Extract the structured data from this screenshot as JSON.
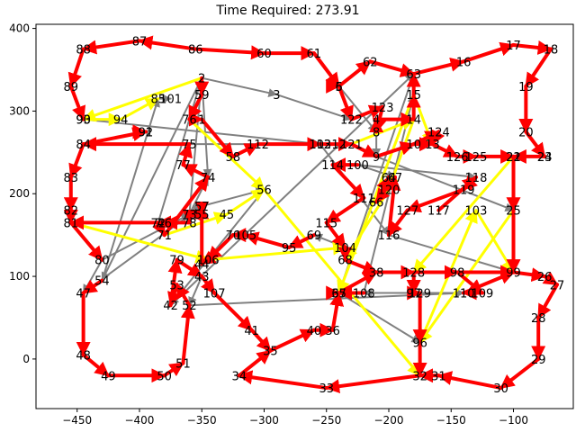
{
  "chart_data": {
    "type": "line",
    "title": "Time Required: 273.91",
    "xlabel": "",
    "ylabel": "",
    "xlim": [
      -483,
      -52
    ],
    "ylim": [
      -60,
      405
    ],
    "xticks": [
      -450,
      -400,
      -350,
      -300,
      -250,
      -200,
      -150,
      -100
    ],
    "yticks": [
      0,
      100,
      200,
      300,
      400
    ],
    "grid": false,
    "colors": {
      "route": "#ff0000",
      "highlight": "#ffff00",
      "connector": "#808080"
    },
    "nodes": [
      {
        "id": "1",
        "x": -350,
        "y": 290
      },
      {
        "id": "2",
        "x": -350,
        "y": 340
      },
      {
        "id": "3",
        "x": -290,
        "y": 320
      },
      {
        "id": "4",
        "x": -210,
        "y": 290
      },
      {
        "id": "5",
        "x": -240,
        "y": 330
      },
      {
        "id": "6",
        "x": -240,
        "y": 330
      },
      {
        "id": "7",
        "x": -385,
        "y": 165
      },
      {
        "id": "8",
        "x": -210,
        "y": 275
      },
      {
        "id": "9",
        "x": -210,
        "y": 245
      },
      {
        "id": "10",
        "x": -180,
        "y": 260
      },
      {
        "id": "12",
        "x": -240,
        "y": 260
      },
      {
        "id": "13",
        "x": -165,
        "y": 260
      },
      {
        "id": "14",
        "x": -180,
        "y": 290
      },
      {
        "id": "15",
        "x": -180,
        "y": 320
      },
      {
        "id": "16",
        "x": -140,
        "y": 360
      },
      {
        "id": "17",
        "x": -100,
        "y": 380
      },
      {
        "id": "18",
        "x": -70,
        "y": 375
      },
      {
        "id": "19",
        "x": -90,
        "y": 330
      },
      {
        "id": "20",
        "x": -90,
        "y": 275
      },
      {
        "id": "21",
        "x": -100,
        "y": 245
      },
      {
        "id": "22",
        "x": -100,
        "y": 245
      },
      {
        "id": "23",
        "x": -75,
        "y": 245
      },
      {
        "id": "24",
        "x": -75,
        "y": 245
      },
      {
        "id": "25",
        "x": -100,
        "y": 180
      },
      {
        "id": "26",
        "x": -75,
        "y": 100
      },
      {
        "id": "27",
        "x": -65,
        "y": 90
      },
      {
        "id": "28",
        "x": -80,
        "y": 50
      },
      {
        "id": "29",
        "x": -80,
        "y": 0
      },
      {
        "id": "30",
        "x": -110,
        "y": -35
      },
      {
        "id": "31",
        "x": -160,
        "y": -20
      },
      {
        "id": "32",
        "x": -175,
        "y": -20
      },
      {
        "id": "33",
        "x": -250,
        "y": -35
      },
      {
        "id": "34",
        "x": -320,
        "y": -20
      },
      {
        "id": "35",
        "x": -295,
        "y": 10
      },
      {
        "id": "36",
        "x": -245,
        "y": 35
      },
      {
        "id": "37",
        "x": -240,
        "y": 80
      },
      {
        "id": "38",
        "x": -210,
        "y": 105
      },
      {
        "id": "40",
        "x": -260,
        "y": 35
      },
      {
        "id": "41",
        "x": -310,
        "y": 35
      },
      {
        "id": "42",
        "x": -375,
        "y": 65
      },
      {
        "id": "43",
        "x": -350,
        "y": 100
      },
      {
        "id": "44",
        "x": -350,
        "y": 115
      },
      {
        "id": "45",
        "x": -330,
        "y": 175
      },
      {
        "id": "46",
        "x": -380,
        "y": 165
      },
      {
        "id": "47",
        "x": -445,
        "y": 80
      },
      {
        "id": "48",
        "x": -445,
        "y": 5
      },
      {
        "id": "49",
        "x": -425,
        "y": -20
      },
      {
        "id": "50",
        "x": -380,
        "y": -20
      },
      {
        "id": "51",
        "x": -365,
        "y": -5
      },
      {
        "id": "52",
        "x": -360,
        "y": 65
      },
      {
        "id": "53",
        "x": -370,
        "y": 90
      },
      {
        "id": "54",
        "x": -430,
        "y": 95
      },
      {
        "id": "55",
        "x": -350,
        "y": 175
      },
      {
        "id": "56",
        "x": -300,
        "y": 205
      },
      {
        "id": "57",
        "x": -350,
        "y": 185
      },
      {
        "id": "58",
        "x": -325,
        "y": 245
      },
      {
        "id": "59",
        "x": -350,
        "y": 320
      },
      {
        "id": "60",
        "x": -300,
        "y": 370
      },
      {
        "id": "61",
        "x": -260,
        "y": 370
      },
      {
        "id": "62",
        "x": -215,
        "y": 360
      },
      {
        "id": "63",
        "x": -180,
        "y": 345
      },
      {
        "id": "64",
        "x": -200,
        "y": 220
      },
      {
        "id": "65",
        "x": -240,
        "y": 80
      },
      {
        "id": "66",
        "x": -210,
        "y": 190
      },
      {
        "id": "67",
        "x": -195,
        "y": 220
      },
      {
        "id": "68",
        "x": -235,
        "y": 120
      },
      {
        "id": "69",
        "x": -260,
        "y": 150
      },
      {
        "id": "70",
        "x": -325,
        "y": 150
      },
      {
        "id": "71",
        "x": -380,
        "y": 150
      },
      {
        "id": "72",
        "x": -385,
        "y": 165
      },
      {
        "id": "73",
        "x": -360,
        "y": 175
      },
      {
        "id": "74",
        "x": -345,
        "y": 220
      },
      {
        "id": "75",
        "x": -360,
        "y": 260
      },
      {
        "id": "76",
        "x": -360,
        "y": 290
      },
      {
        "id": "77",
        "x": -365,
        "y": 235
      },
      {
        "id": "78",
        "x": -360,
        "y": 165
      },
      {
        "id": "79",
        "x": -370,
        "y": 120
      },
      {
        "id": "80",
        "x": -430,
        "y": 120
      },
      {
        "id": "81",
        "x": -455,
        "y": 165
      },
      {
        "id": "82",
        "x": -455,
        "y": 180
      },
      {
        "id": "83",
        "x": -455,
        "y": 220
      },
      {
        "id": "84",
        "x": -445,
        "y": 260
      },
      {
        "id": "85",
        "x": -385,
        "y": 315
      },
      {
        "id": "86",
        "x": -355,
        "y": 375
      },
      {
        "id": "87",
        "x": -400,
        "y": 385
      },
      {
        "id": "88",
        "x": -445,
        "y": 375
      },
      {
        "id": "89",
        "x": -455,
        "y": 330
      },
      {
        "id": "90",
        "x": -445,
        "y": 290
      },
      {
        "id": "91",
        "x": -395,
        "y": 275
      },
      {
        "id": "92",
        "x": -395,
        "y": 275
      },
      {
        "id": "93",
        "x": -445,
        "y": 290
      },
      {
        "id": "94",
        "x": -415,
        "y": 290
      },
      {
        "id": "95",
        "x": -280,
        "y": 135
      },
      {
        "id": "96",
        "x": -175,
        "y": 20
      },
      {
        "id": "97",
        "x": -180,
        "y": 80
      },
      {
        "id": "98",
        "x": -145,
        "y": 105
      },
      {
        "id": "99",
        "x": -100,
        "y": 105
      },
      {
        "id": "100",
        "x": -225,
        "y": 235
      },
      {
        "id": "101",
        "x": -375,
        "y": 315
      },
      {
        "id": "102",
        "x": -255,
        "y": 260
      },
      {
        "id": "103",
        "x": -130,
        "y": 180
      },
      {
        "id": "104",
        "x": -235,
        "y": 135
      },
      {
        "id": "105",
        "x": -315,
        "y": 150
      },
      {
        "id": "106",
        "x": -345,
        "y": 120
      },
      {
        "id": "107",
        "x": -340,
        "y": 80
      },
      {
        "id": "108",
        "x": -220,
        "y": 80
      },
      {
        "id": "109",
        "x": -125,
        "y": 80
      },
      {
        "id": "110",
        "x": -140,
        "y": 80
      },
      {
        "id": "111",
        "x": -220,
        "y": 195
      },
      {
        "id": "112",
        "x": -305,
        "y": 260
      },
      {
        "id": "113",
        "x": -255,
        "y": 260
      },
      {
        "id": "114",
        "x": -245,
        "y": 235
      },
      {
        "id": "115",
        "x": -250,
        "y": 165
      },
      {
        "id": "116",
        "x": -200,
        "y": 150
      },
      {
        "id": "117",
        "x": -160,
        "y": 180
      },
      {
        "id": "118",
        "x": -130,
        "y": 220
      },
      {
        "id": "119",
        "x": -140,
        "y": 205
      },
      {
        "id": "120",
        "x": -200,
        "y": 205
      },
      {
        "id": "121",
        "x": -230,
        "y": 260
      },
      {
        "id": "122",
        "x": -230,
        "y": 290
      },
      {
        "id": "123",
        "x": -205,
        "y": 305
      },
      {
        "id": "124",
        "x": -160,
        "y": 275
      },
      {
        "id": "125",
        "x": -130,
        "y": 245
      },
      {
        "id": "126",
        "x": -145,
        "y": 245
      },
      {
        "id": "127",
        "x": -185,
        "y": 180
      },
      {
        "id": "128",
        "x": -180,
        "y": 105
      },
      {
        "id": "129",
        "x": -175,
        "y": 80
      }
    ],
    "red_edges": [
      [
        "86",
        "87"
      ],
      [
        "87",
        "88"
      ],
      [
        "88",
        "89"
      ],
      [
        "89",
        "90"
      ],
      [
        "84",
        "83"
      ],
      [
        "83",
        "82"
      ],
      [
        "82",
        "81"
      ],
      [
        "81",
        "80"
      ],
      [
        "54",
        "47"
      ],
      [
        "47",
        "48"
      ],
      [
        "48",
        "49"
      ],
      [
        "49",
        "50"
      ],
      [
        "50",
        "51"
      ],
      [
        "51",
        "52"
      ],
      [
        "52",
        "53"
      ],
      [
        "53",
        "42"
      ],
      [
        "42",
        "79"
      ],
      [
        "79",
        "43"
      ],
      [
        "43",
        "107"
      ],
      [
        "107",
        "41"
      ],
      [
        "41",
        "35"
      ],
      [
        "35",
        "40"
      ],
      [
        "40",
        "36"
      ],
      [
        "36",
        "37"
      ],
      [
        "37",
        "38"
      ],
      [
        "38",
        "128"
      ],
      [
        "128",
        "98"
      ],
      [
        "98",
        "99"
      ],
      [
        "99",
        "26"
      ],
      [
        "26",
        "27"
      ],
      [
        "27",
        "28"
      ],
      [
        "28",
        "29"
      ],
      [
        "29",
        "30"
      ],
      [
        "30",
        "31"
      ],
      [
        "31",
        "32"
      ],
      [
        "32",
        "33"
      ],
      [
        "33",
        "34"
      ],
      [
        "34",
        "35"
      ],
      [
        "60",
        "61"
      ],
      [
        "61",
        "5"
      ],
      [
        "5",
        "62"
      ],
      [
        "62",
        "63"
      ],
      [
        "63",
        "16"
      ],
      [
        "16",
        "17"
      ],
      [
        "17",
        "18"
      ],
      [
        "18",
        "19"
      ],
      [
        "19",
        "20"
      ],
      [
        "20",
        "23"
      ],
      [
        "23",
        "21"
      ],
      [
        "21",
        "25"
      ],
      [
        "25",
        "99"
      ],
      [
        "86",
        "60"
      ],
      [
        "2",
        "59"
      ],
      [
        "59",
        "76"
      ],
      [
        "76",
        "1"
      ],
      [
        "1",
        "58"
      ],
      [
        "58",
        "112"
      ],
      [
        "112",
        "102"
      ],
      [
        "102",
        "121"
      ],
      [
        "121",
        "9"
      ],
      [
        "9",
        "10"
      ],
      [
        "10",
        "13"
      ],
      [
        "13",
        "126"
      ],
      [
        "126",
        "125"
      ],
      [
        "125",
        "22"
      ],
      [
        "117",
        "118"
      ],
      [
        "118",
        "119"
      ],
      [
        "119",
        "127"
      ],
      [
        "127",
        "116"
      ],
      [
        "116",
        "67"
      ],
      [
        "67",
        "66"
      ],
      [
        "66",
        "64"
      ],
      [
        "100",
        "114"
      ],
      [
        "114",
        "111"
      ],
      [
        "111",
        "115"
      ],
      [
        "115",
        "104"
      ],
      [
        "104",
        "68"
      ],
      [
        "68",
        "38"
      ],
      [
        "69",
        "95"
      ],
      [
        "95",
        "105"
      ],
      [
        "105",
        "70"
      ],
      [
        "70",
        "106"
      ],
      [
        "106",
        "44"
      ],
      [
        "44",
        "57"
      ],
      [
        "57",
        "55"
      ],
      [
        "55",
        "73"
      ],
      [
        "73",
        "78"
      ],
      [
        "78",
        "46"
      ],
      [
        "46",
        "72"
      ],
      [
        "72",
        "81"
      ],
      [
        "7",
        "71"
      ],
      [
        "71",
        "74"
      ],
      [
        "74",
        "77"
      ],
      [
        "77",
        "75"
      ],
      [
        "75",
        "84"
      ],
      [
        "84",
        "91"
      ],
      [
        "91",
        "92"
      ],
      [
        "5",
        "6"
      ],
      [
        "6",
        "122"
      ],
      [
        "122",
        "123"
      ],
      [
        "123",
        "8"
      ],
      [
        "8",
        "4"
      ],
      [
        "4",
        "14"
      ],
      [
        "14",
        "15"
      ],
      [
        "15",
        "63"
      ],
      [
        "10",
        "124"
      ],
      [
        "124",
        "13"
      ],
      [
        "128",
        "97"
      ],
      [
        "97",
        "129"
      ],
      [
        "129",
        "96"
      ],
      [
        "96",
        "32"
      ],
      [
        "98",
        "109"
      ],
      [
        "109",
        "110"
      ],
      [
        "110",
        "99"
      ],
      [
        "108",
        "65"
      ],
      [
        "65",
        "37"
      ]
    ],
    "yellow_edges": [
      [
        "2",
        "93"
      ],
      [
        "93",
        "94"
      ],
      [
        "94",
        "85"
      ],
      [
        "71",
        "45"
      ],
      [
        "45",
        "56"
      ],
      [
        "56",
        "32"
      ],
      [
        "81",
        "106"
      ],
      [
        "106",
        "104"
      ],
      [
        "15",
        "65"
      ],
      [
        "15",
        "13"
      ],
      [
        "14",
        "120"
      ],
      [
        "120",
        "68"
      ],
      [
        "22",
        "128"
      ],
      [
        "25",
        "96"
      ],
      [
        "96",
        "103"
      ],
      [
        "103",
        "99"
      ],
      [
        "121",
        "14"
      ],
      [
        "76",
        "56"
      ]
    ],
    "gray_edges": [
      [
        "2",
        "3"
      ],
      [
        "3",
        "122"
      ],
      [
        "2",
        "54"
      ],
      [
        "54",
        "85"
      ],
      [
        "85",
        "101"
      ],
      [
        "2",
        "74"
      ],
      [
        "80",
        "47"
      ],
      [
        "47",
        "57"
      ],
      [
        "57",
        "56"
      ],
      [
        "56",
        "42"
      ],
      [
        "42",
        "63"
      ],
      [
        "63",
        "65"
      ],
      [
        "65",
        "96"
      ],
      [
        "65",
        "110"
      ],
      [
        "43",
        "52"
      ],
      [
        "52",
        "110"
      ],
      [
        "110",
        "108"
      ],
      [
        "75",
        "121"
      ],
      [
        "121",
        "9"
      ],
      [
        "9",
        "25"
      ],
      [
        "22",
        "99"
      ],
      [
        "5",
        "8"
      ],
      [
        "8",
        "9"
      ],
      [
        "100",
        "118"
      ],
      [
        "100",
        "67"
      ],
      [
        "37",
        "65"
      ],
      [
        "108",
        "15"
      ],
      [
        "104",
        "69"
      ],
      [
        "93",
        "102"
      ],
      [
        "102",
        "116"
      ],
      [
        "116",
        "99"
      ],
      [
        "80",
        "73"
      ],
      [
        "73",
        "74"
      ],
      [
        "73",
        "2"
      ],
      [
        "7",
        "2"
      ],
      [
        "46",
        "57"
      ]
    ]
  }
}
